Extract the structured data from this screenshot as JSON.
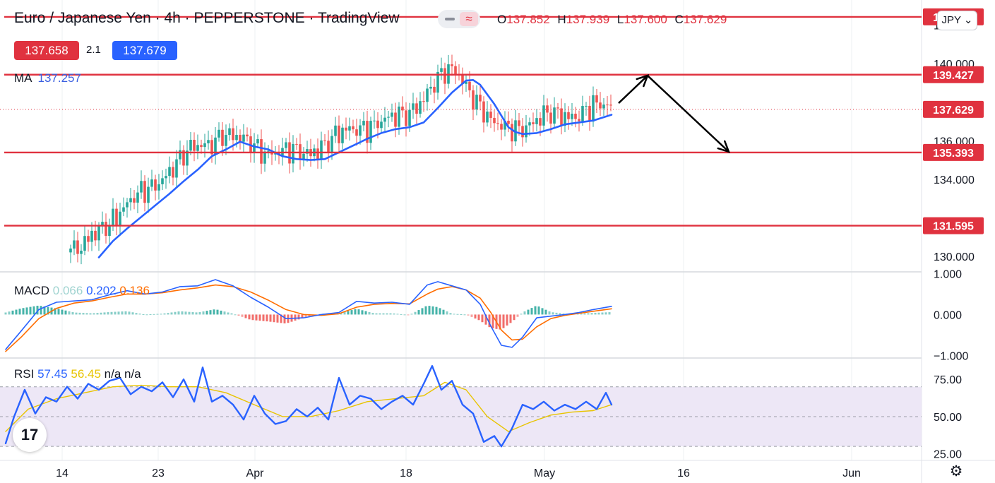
{
  "header": {
    "symbol_title": "Euro / Japanese Yen · 4h · PEPPERSTONE · TradingView",
    "ohlc": [
      {
        "label": "O",
        "value": "137.852"
      },
      {
        "label": "H",
        "value": "137.939"
      },
      {
        "label": "L",
        "value": "137.600"
      },
      {
        "label": "C",
        "value": "137.629"
      }
    ],
    "bid": "137.658",
    "spread": "2.1",
    "ask": "137.679",
    "currency": "JPY",
    "wave_icon": "≈"
  },
  "colors": {
    "candle_up": "#26a69a",
    "candle_down": "#ef5350",
    "level_line": "#e0323f",
    "ma": "#2962ff",
    "macd": "#2962ff",
    "signal": "#ff6d00",
    "rsi": "#2962ff",
    "rsi_ma": "#e8c400",
    "rsi_band": "#ede7f6",
    "arrow": "#000000"
  },
  "legends": {
    "ma": {
      "label": "MA",
      "value": "137.257"
    },
    "macd": {
      "label": "MACD",
      "hist": "0.066",
      "macd": "0.202",
      "signal": "0.136"
    },
    "rsi": {
      "label": "RSI",
      "rsi": "57.45",
      "ma": "56.45",
      "extra": "n/a n/a"
    }
  },
  "chart_data": [
    {
      "type": "line",
      "title": "Euro / Japanese Yen · 4h · PEPPERSTONE · TradingView",
      "x_ticks": [
        "14",
        "23",
        "Apr",
        "18",
        "May",
        "16",
        "Jun"
      ],
      "y_ticks": [
        "130.000",
        "134.000",
        "136.000",
        "140.000",
        "142.000"
      ],
      "ylim": [
        129.2,
        143.3
      ],
      "series": [
        {
          "name": "MA",
          "x": [
            140,
            160,
            180,
            200,
            220,
            240,
            260,
            280,
            300,
            320,
            340,
            360,
            380,
            400,
            420,
            440,
            460,
            480,
            500,
            520,
            540,
            560,
            580,
            600,
            620,
            640,
            660,
            670,
            680,
            700,
            720,
            730,
            740,
            760,
            780,
            800,
            820,
            840,
            866
          ],
          "y": [
            129.95,
            130.8,
            131.45,
            132.05,
            132.65,
            133.25,
            133.9,
            134.5,
            135.2,
            135.55,
            135.95,
            135.7,
            135.55,
            135.2,
            135.05,
            135.0,
            135.05,
            135.4,
            135.75,
            136.1,
            136.4,
            136.6,
            136.7,
            136.95,
            137.7,
            138.5,
            139.12,
            139.15,
            138.9,
            137.9,
            136.7,
            136.45,
            136.35,
            136.4,
            136.6,
            136.85,
            136.95,
            137.05,
            137.35
          ]
        }
      ],
      "levels": [
        "142.424",
        "139.427",
        "137.629",
        "135.393",
        "131.595"
      ],
      "annotations": [
        "up-arrow",
        "down-arrow"
      ]
    },
    {
      "type": "bar",
      "title": "MACD",
      "y_ticks": [
        "1.000",
        "0.000",
        "−1.000"
      ],
      "ylim": [
        -1.06,
        1.04
      ],
      "series": [
        {
          "name": "MACD",
          "x": [
            8,
            30,
            55,
            80,
            105,
            130,
            155,
            180,
            205,
            230,
            255,
            280,
            305,
            330,
            355,
            380,
            405,
            430,
            455,
            480,
            505,
            530,
            555,
            580,
            605,
            620,
            640,
            660,
            680,
            695,
            710,
            725,
            740,
            760,
            780,
            800,
            820,
            840,
            866
          ],
          "y": [
            -0.85,
            -0.4,
            0.12,
            0.3,
            0.33,
            0.36,
            0.48,
            0.58,
            0.5,
            0.55,
            0.68,
            0.7,
            0.85,
            0.7,
            0.42,
            0.18,
            -0.1,
            -0.08,
            0.0,
            0.05,
            0.32,
            0.28,
            0.3,
            0.25,
            0.72,
            0.8,
            0.7,
            0.6,
            0.25,
            -0.28,
            -0.75,
            -0.8,
            -0.55,
            -0.08,
            -0.04,
            0.0,
            0.05,
            0.12,
            0.2
          ]
        },
        {
          "name": "Signal",
          "x": [
            8,
            30,
            55,
            80,
            105,
            130,
            155,
            180,
            205,
            230,
            255,
            280,
            305,
            330,
            355,
            380,
            405,
            430,
            455,
            480,
            505,
            530,
            555,
            580,
            605,
            620,
            640,
            660,
            680,
            695,
            710,
            725,
            740,
            760,
            780,
            800,
            820,
            840,
            866
          ],
          "y": [
            -0.9,
            -0.55,
            -0.1,
            0.15,
            0.28,
            0.33,
            0.42,
            0.5,
            0.5,
            0.53,
            0.6,
            0.65,
            0.72,
            0.68,
            0.55,
            0.35,
            0.12,
            0.0,
            -0.02,
            0.02,
            0.18,
            0.25,
            0.27,
            0.26,
            0.5,
            0.62,
            0.68,
            0.6,
            0.4,
            0.05,
            -0.38,
            -0.62,
            -0.6,
            -0.3,
            -0.1,
            -0.02,
            0.03,
            0.08,
            0.14
          ]
        }
      ],
      "histogram": {
        "x": [
          8,
          30,
          55,
          80,
          105,
          130,
          155,
          180,
          205,
          230,
          255,
          280,
          305,
          330,
          355,
          380,
          405,
          430,
          455,
          480,
          505,
          530,
          555,
          580,
          605,
          620,
          640,
          660,
          680,
          695,
          710,
          725,
          740,
          760,
          780,
          800,
          820,
          840,
          866
        ],
        "y": [
          0.05,
          0.15,
          0.22,
          0.15,
          0.05,
          0.03,
          0.06,
          0.08,
          0.0,
          0.02,
          0.08,
          0.05,
          0.13,
          0.02,
          -0.13,
          -0.17,
          -0.22,
          -0.08,
          0.02,
          0.03,
          0.14,
          0.03,
          0.03,
          -0.01,
          0.22,
          0.18,
          0.02,
          0.0,
          -0.15,
          -0.33,
          -0.37,
          -0.18,
          0.05,
          0.22,
          0.06,
          0.02,
          0.02,
          0.04,
          0.06
        ]
      }
    },
    {
      "type": "line",
      "title": "RSI",
      "y_ticks": [
        "75.00",
        "50.00",
        "25.00"
      ],
      "ylim": [
        20.6,
        89.3
      ],
      "band": [
        30,
        70
      ],
      "series": [
        {
          "name": "RSI",
          "x": [
            8,
            20,
            35,
            50,
            65,
            80,
            95,
            110,
            125,
            140,
            155,
            170,
            185,
            200,
            215,
            230,
            245,
            260,
            275,
            287,
            300,
            315,
            330,
            345,
            360,
            375,
            390,
            405,
            420,
            435,
            450,
            465,
            480,
            495,
            510,
            525,
            540,
            555,
            570,
            585,
            600,
            612,
            625,
            640,
            655,
            670,
            685,
            700,
            710,
            725,
            740,
            755,
            770,
            785,
            800,
            815,
            830,
            845,
            858,
            866
          ],
          "y": [
            32,
            50,
            68,
            52,
            63,
            60,
            70,
            62,
            72,
            68,
            74,
            76,
            65,
            70,
            67,
            73,
            63,
            75,
            60,
            83,
            60,
            64,
            58,
            48,
            64,
            52,
            45,
            47,
            55,
            50,
            56,
            48,
            76,
            58,
            64,
            62,
            55,
            60,
            64,
            58,
            72,
            84,
            68,
            74,
            58,
            52,
            33,
            37,
            30,
            42,
            58,
            55,
            60,
            54,
            58,
            55,
            60,
            55,
            66,
            58
          ]
        },
        {
          "name": "MA",
          "x": [
            8,
            40,
            80,
            120,
            160,
            200,
            240,
            280,
            320,
            360,
            400,
            440,
            480,
            520,
            560,
            600,
            630,
            660,
            690,
            720,
            750,
            780,
            810,
            840,
            866
          ],
          "y": [
            40,
            55,
            62,
            66,
            70,
            71,
            70,
            70,
            66,
            58,
            50,
            50,
            54,
            60,
            62,
            64,
            73,
            68,
            50,
            40,
            46,
            51,
            53,
            54,
            58
          ]
        }
      ]
    }
  ]
}
